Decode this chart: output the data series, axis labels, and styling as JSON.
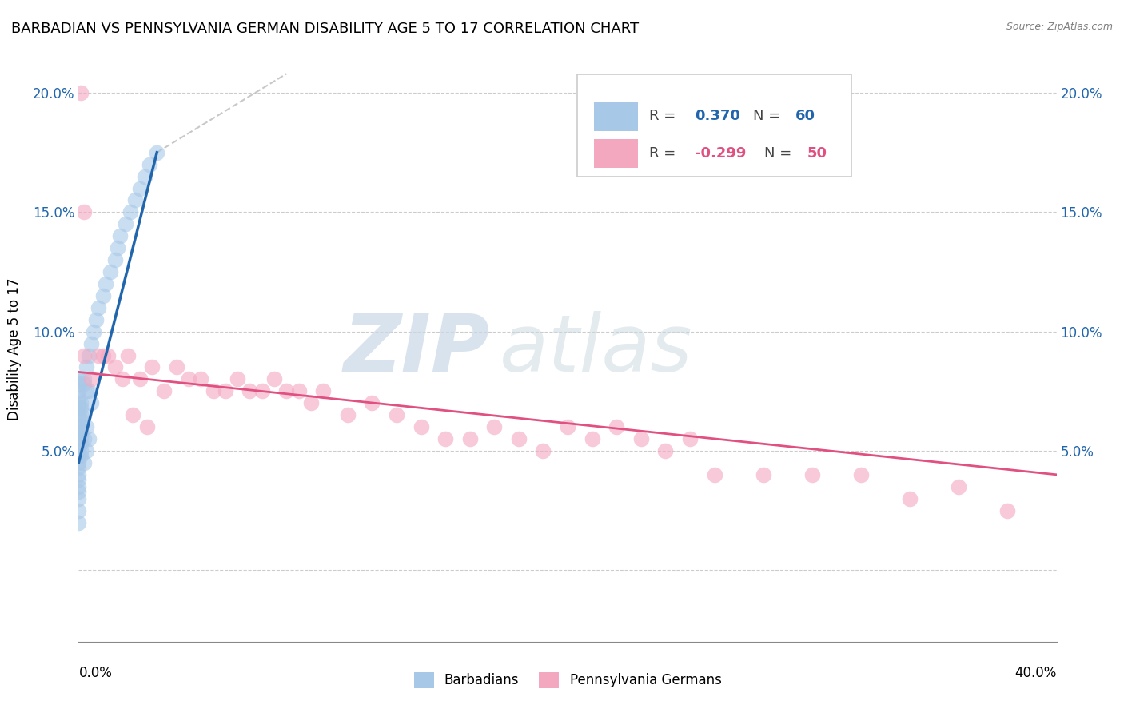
{
  "title": "BARBADIAN VS PENNSYLVANIA GERMAN DISABILITY AGE 5 TO 17 CORRELATION CHART",
  "source": "Source: ZipAtlas.com",
  "ylabel": "Disability Age 5 to 17",
  "xlim": [
    0.0,
    0.4
  ],
  "ylim": [
    -0.03,
    0.215
  ],
  "ytick_vals": [
    0.0,
    0.05,
    0.1,
    0.15,
    0.2
  ],
  "ytick_labels": [
    "",
    "5.0%",
    "10.0%",
    "15.0%",
    "20.0%"
  ],
  "legend_label1": "Barbadians",
  "legend_label2": "Pennsylvania Germans",
  "color_blue": "#a8c8e8",
  "color_pink": "#f4a8c0",
  "color_blue_line": "#2166ac",
  "color_pink_line": "#e05080",
  "color_dashed": "#bbbbbb",
  "watermark_zip": "ZIP",
  "watermark_atlas": "atlas",
  "barbadians_x": [
    0.0,
    0.0,
    0.0,
    0.0,
    0.0,
    0.0,
    0.0,
    0.0,
    0.0,
    0.0,
    0.0,
    0.0,
    0.0,
    0.0,
    0.0,
    0.0,
    0.0,
    0.0,
    0.0,
    0.0,
    0.001,
    0.001,
    0.001,
    0.001,
    0.001,
    0.001,
    0.001,
    0.001,
    0.001,
    0.001,
    0.002,
    0.002,
    0.002,
    0.002,
    0.002,
    0.003,
    0.003,
    0.003,
    0.003,
    0.004,
    0.004,
    0.004,
    0.005,
    0.005,
    0.006,
    0.007,
    0.008,
    0.01,
    0.011,
    0.013,
    0.015,
    0.016,
    0.017,
    0.019,
    0.021,
    0.023,
    0.025,
    0.027,
    0.029,
    0.032
  ],
  "barbadians_y": [
    0.05,
    0.055,
    0.06,
    0.065,
    0.068,
    0.07,
    0.072,
    0.075,
    0.078,
    0.08,
    0.045,
    0.048,
    0.04,
    0.043,
    0.035,
    0.038,
    0.033,
    0.03,
    0.025,
    0.02,
    0.07,
    0.068,
    0.065,
    0.063,
    0.06,
    0.058,
    0.056,
    0.053,
    0.05,
    0.048,
    0.08,
    0.078,
    0.065,
    0.055,
    0.045,
    0.085,
    0.075,
    0.06,
    0.05,
    0.09,
    0.075,
    0.055,
    0.095,
    0.07,
    0.1,
    0.105,
    0.11,
    0.115,
    0.12,
    0.125,
    0.13,
    0.135,
    0.14,
    0.145,
    0.15,
    0.155,
    0.16,
    0.165,
    0.17,
    0.175
  ],
  "pagermans_x": [
    0.001,
    0.002,
    0.01,
    0.015,
    0.02,
    0.025,
    0.03,
    0.035,
    0.04,
    0.045,
    0.05,
    0.055,
    0.06,
    0.065,
    0.07,
    0.075,
    0.08,
    0.085,
    0.09,
    0.095,
    0.1,
    0.11,
    0.12,
    0.13,
    0.14,
    0.15,
    0.16,
    0.17,
    0.18,
    0.19,
    0.2,
    0.21,
    0.22,
    0.23,
    0.24,
    0.25,
    0.26,
    0.28,
    0.3,
    0.32,
    0.34,
    0.36,
    0.38,
    0.002,
    0.005,
    0.008,
    0.012,
    0.018,
    0.022,
    0.028
  ],
  "pagermans_y": [
    0.2,
    0.15,
    0.09,
    0.085,
    0.09,
    0.08,
    0.085,
    0.075,
    0.085,
    0.08,
    0.08,
    0.075,
    0.075,
    0.08,
    0.075,
    0.075,
    0.08,
    0.075,
    0.075,
    0.07,
    0.075,
    0.065,
    0.07,
    0.065,
    0.06,
    0.055,
    0.055,
    0.06,
    0.055,
    0.05,
    0.06,
    0.055,
    0.06,
    0.055,
    0.05,
    0.055,
    0.04,
    0.04,
    0.04,
    0.04,
    0.03,
    0.035,
    0.025,
    0.09,
    0.08,
    0.09,
    0.09,
    0.08,
    0.065,
    0.06
  ],
  "blue_line_x0": 0.0,
  "blue_line_x1": 0.032,
  "blue_line_y0": 0.045,
  "blue_line_y1": 0.175,
  "pink_line_x0": 0.0,
  "pink_line_x1": 0.4,
  "pink_line_y0": 0.083,
  "pink_line_y1": 0.04,
  "dash_line_x0": 0.032,
  "dash_line_x1": 0.085,
  "dash_line_y0": 0.175,
  "dash_line_y1": 0.208
}
